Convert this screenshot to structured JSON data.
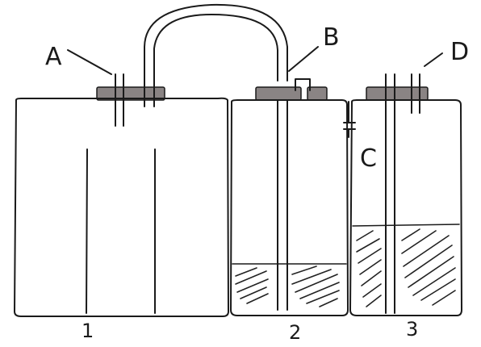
{
  "diagram": {
    "labels": {
      "a": "A",
      "b": "B",
      "c": "C",
      "d": "D",
      "bottle_1": "1",
      "bottle_2": "2",
      "bottle_3": "3"
    },
    "colors": {
      "stopper": "#8a8484",
      "ink": "#1a1a1a",
      "background": "#ffffff"
    }
  }
}
